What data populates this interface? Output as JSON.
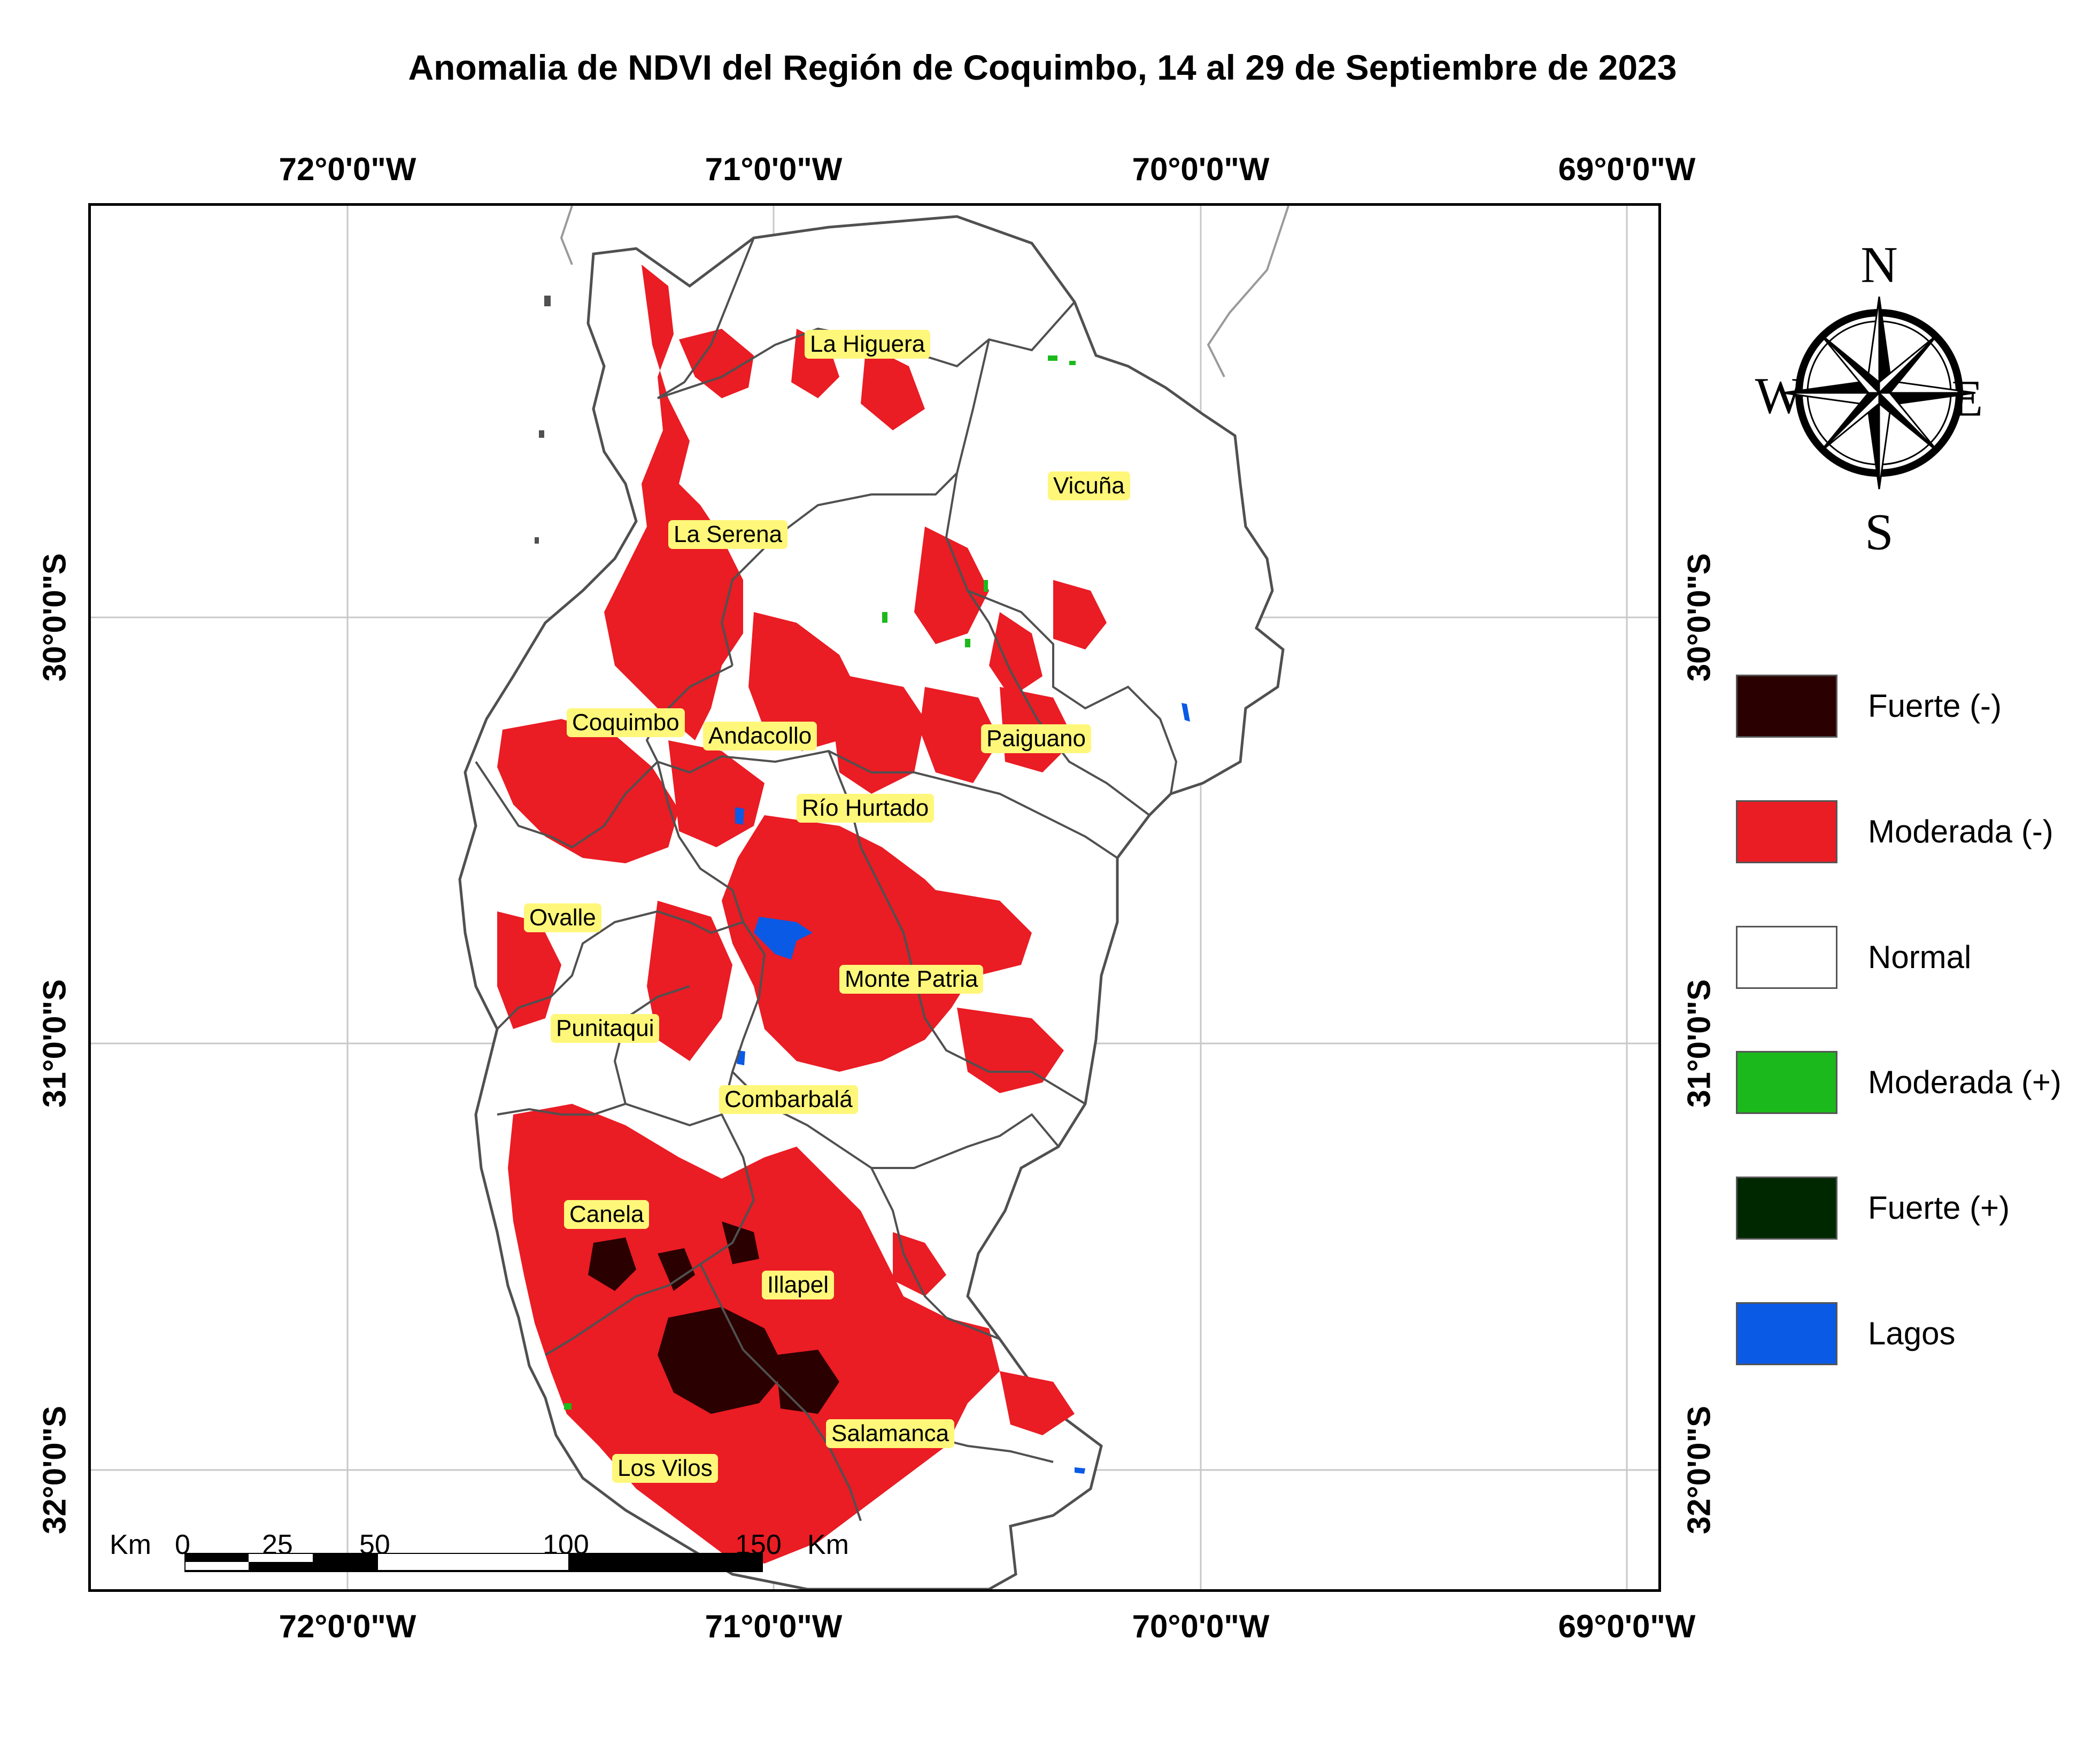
{
  "title": "Anomalia de NDVI del Región de Coquimbo, 14 al 29 de Septiembre de 2023",
  "graticule": {
    "lon_labels": [
      "72°0'0\"W",
      "71°0'0\"W",
      "70°0'0\"W",
      "69°0'0\"W"
    ],
    "lat_labels": [
      "30°0'0\"S",
      "31°0'0\"S",
      "32°0'0\"S"
    ]
  },
  "places": [
    {
      "name": "La Higuera"
    },
    {
      "name": "Vicuña"
    },
    {
      "name": "La Serena"
    },
    {
      "name": "Coquimbo"
    },
    {
      "name": "Andacollo"
    },
    {
      "name": "Paiguano"
    },
    {
      "name": "Río Hurtado"
    },
    {
      "name": "Ovalle"
    },
    {
      "name": "Monte Patria"
    },
    {
      "name": "Punitaqui"
    },
    {
      "name": "Combarbalá"
    },
    {
      "name": "Canela"
    },
    {
      "name": "Illapel"
    },
    {
      "name": "Salamanca"
    },
    {
      "name": "Los Vilos"
    }
  ],
  "legend": [
    {
      "label": "Fuerte (-)",
      "color": "#2a0000"
    },
    {
      "label": "Moderada (-)",
      "color": "#ea1c24"
    },
    {
      "label": "Normal",
      "color": "#ffffff"
    },
    {
      "label": "Moderada (+)",
      "color": "#1cb91c"
    },
    {
      "label": "Fuerte (+)",
      "color": "#002800"
    },
    {
      "label": "Lagos",
      "color": "#0a5ae6"
    }
  ],
  "north_arrow": {
    "n": "N",
    "s": "S",
    "e": "E",
    "w": "W"
  },
  "scale_bar": {
    "unit_left": "Km",
    "unit_right": "Km",
    "ticks": [
      "0",
      "25",
      "50",
      "100",
      "150"
    ]
  },
  "colors": {
    "negative_strong": "#2a0000",
    "negative_moderate": "#ea1c24",
    "positive_moderate": "#1cb91c",
    "lake": "#0a5ae6",
    "boundary": "#505050",
    "place_label_bg": "#fff77a"
  }
}
